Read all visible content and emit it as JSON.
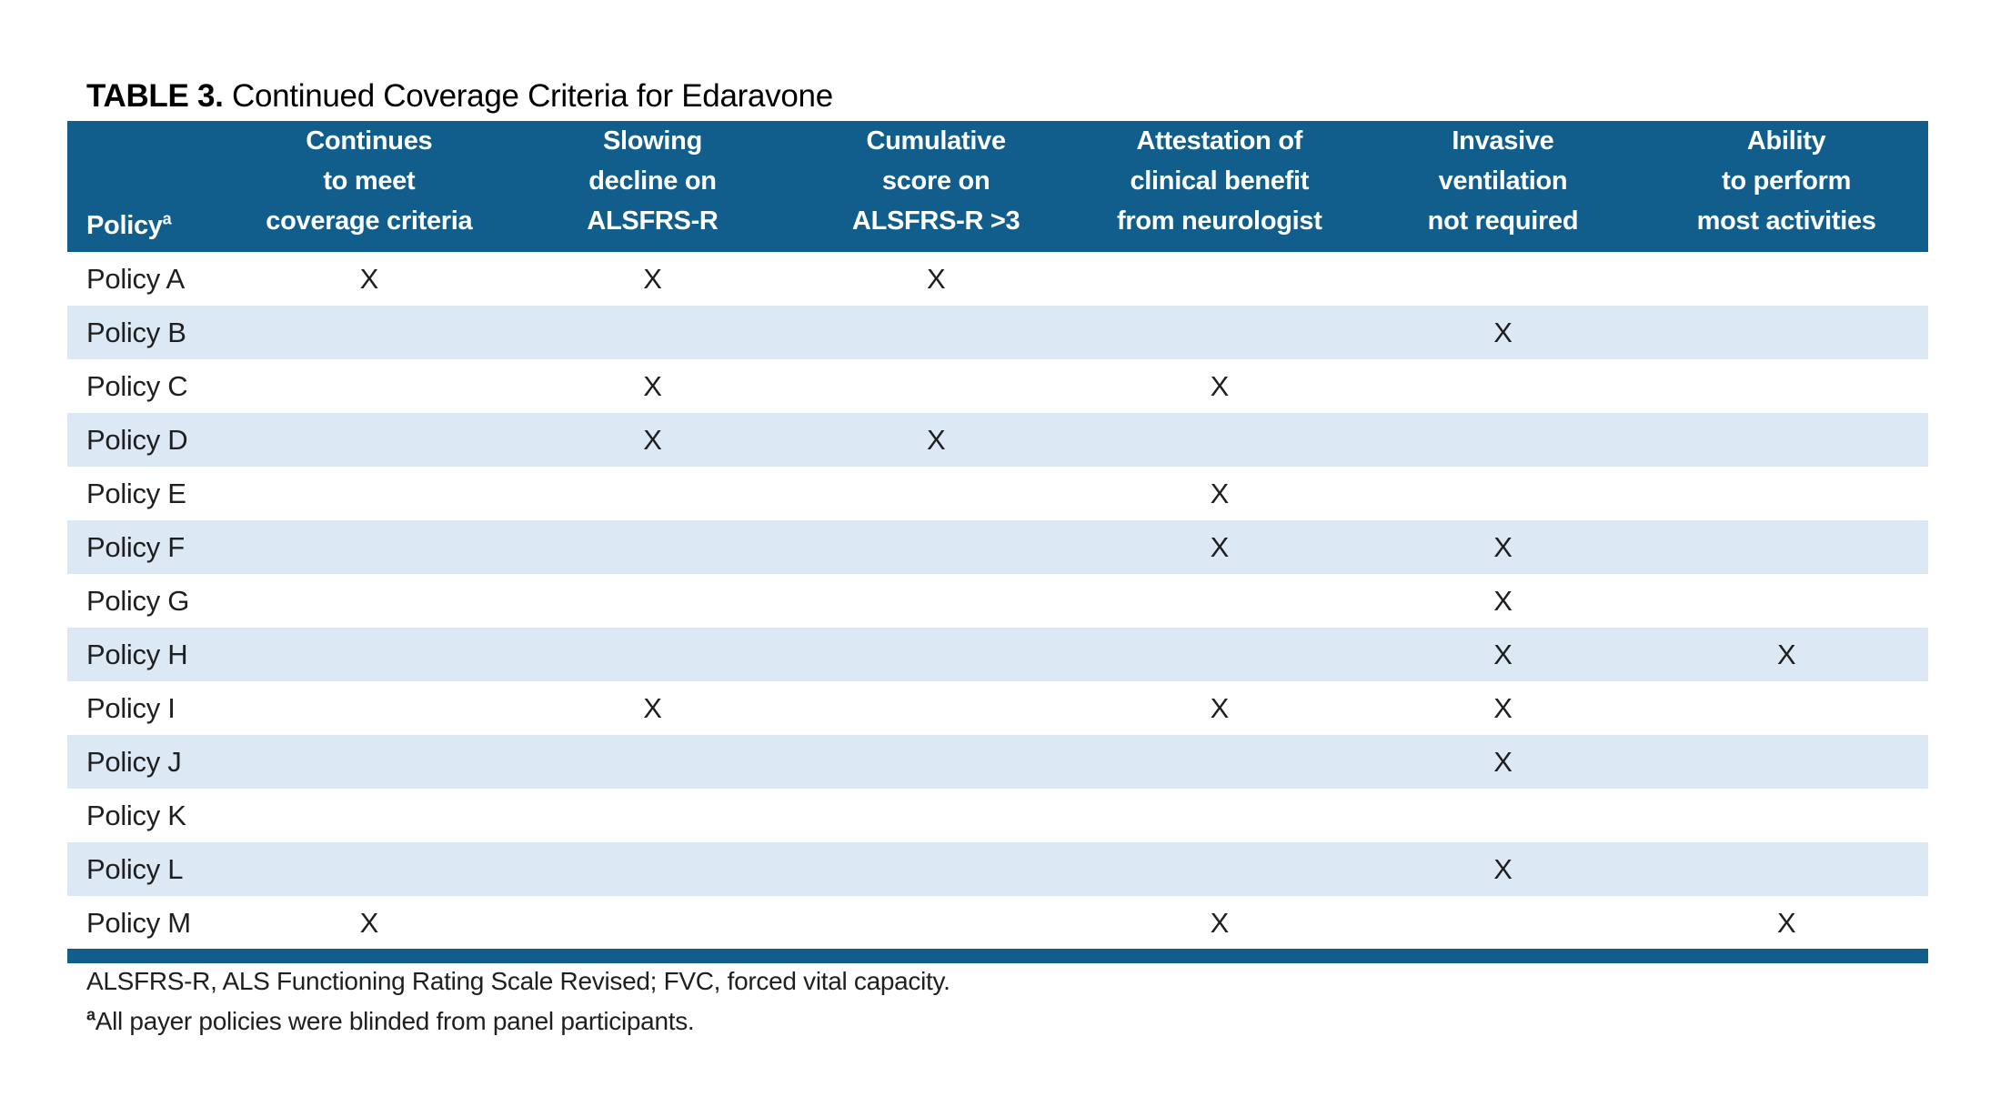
{
  "title": {
    "label": "TABLE 3.",
    "text": " Continued Coverage Criteria for Edaravone"
  },
  "table": {
    "policy_header": "Policy",
    "policy_header_sup": "a",
    "columns": [
      {
        "lines": [
          "Continues",
          "to meet",
          "coverage criteria"
        ]
      },
      {
        "lines": [
          "Slowing",
          "decline on",
          "ALSFRS-R"
        ]
      },
      {
        "lines": [
          "Cumulative",
          "score on",
          "ALSFRS-R >3"
        ]
      },
      {
        "lines": [
          "Attestation of",
          "clinical benefit",
          "from neurologist"
        ]
      },
      {
        "lines": [
          "Invasive",
          "ventilation",
          "not required"
        ]
      },
      {
        "lines": [
          "Ability",
          "to perform",
          "most activities"
        ]
      }
    ],
    "mark": "X",
    "rows": [
      {
        "policy": "Policy A",
        "marks": [
          true,
          true,
          true,
          false,
          false,
          false
        ]
      },
      {
        "policy": "Policy B",
        "marks": [
          false,
          false,
          false,
          false,
          true,
          false
        ]
      },
      {
        "policy": "Policy C",
        "marks": [
          false,
          true,
          false,
          true,
          false,
          false
        ]
      },
      {
        "policy": "Policy D",
        "marks": [
          false,
          true,
          true,
          false,
          false,
          false
        ]
      },
      {
        "policy": "Policy E",
        "marks": [
          false,
          false,
          false,
          true,
          false,
          false
        ]
      },
      {
        "policy": "Policy F",
        "marks": [
          false,
          false,
          false,
          true,
          true,
          false
        ]
      },
      {
        "policy": "Policy G",
        "marks": [
          false,
          false,
          false,
          false,
          true,
          false
        ]
      },
      {
        "policy": "Policy H",
        "marks": [
          false,
          false,
          false,
          false,
          true,
          true
        ]
      },
      {
        "policy": "Policy I",
        "marks": [
          false,
          true,
          false,
          true,
          true,
          false
        ]
      },
      {
        "policy": "Policy J",
        "marks": [
          false,
          false,
          false,
          false,
          true,
          false
        ]
      },
      {
        "policy": "Policy K",
        "marks": [
          false,
          false,
          false,
          false,
          false,
          false
        ]
      },
      {
        "policy": "Policy L",
        "marks": [
          false,
          false,
          false,
          false,
          true,
          false
        ]
      },
      {
        "policy": "Policy M",
        "marks": [
          true,
          false,
          false,
          true,
          false,
          true
        ]
      }
    ]
  },
  "footnotes": {
    "abbreviations": "ALSFRS-R, ALS Functioning Rating Scale Revised; FVC, forced vital capacity.",
    "note_a_sup": "a",
    "note_a_text": "All payer policies were blinded from panel participants."
  },
  "colors": {
    "header_bg": "#115E8C",
    "stripe_bg": "#DCE9F5",
    "rule": "#115E8C"
  }
}
